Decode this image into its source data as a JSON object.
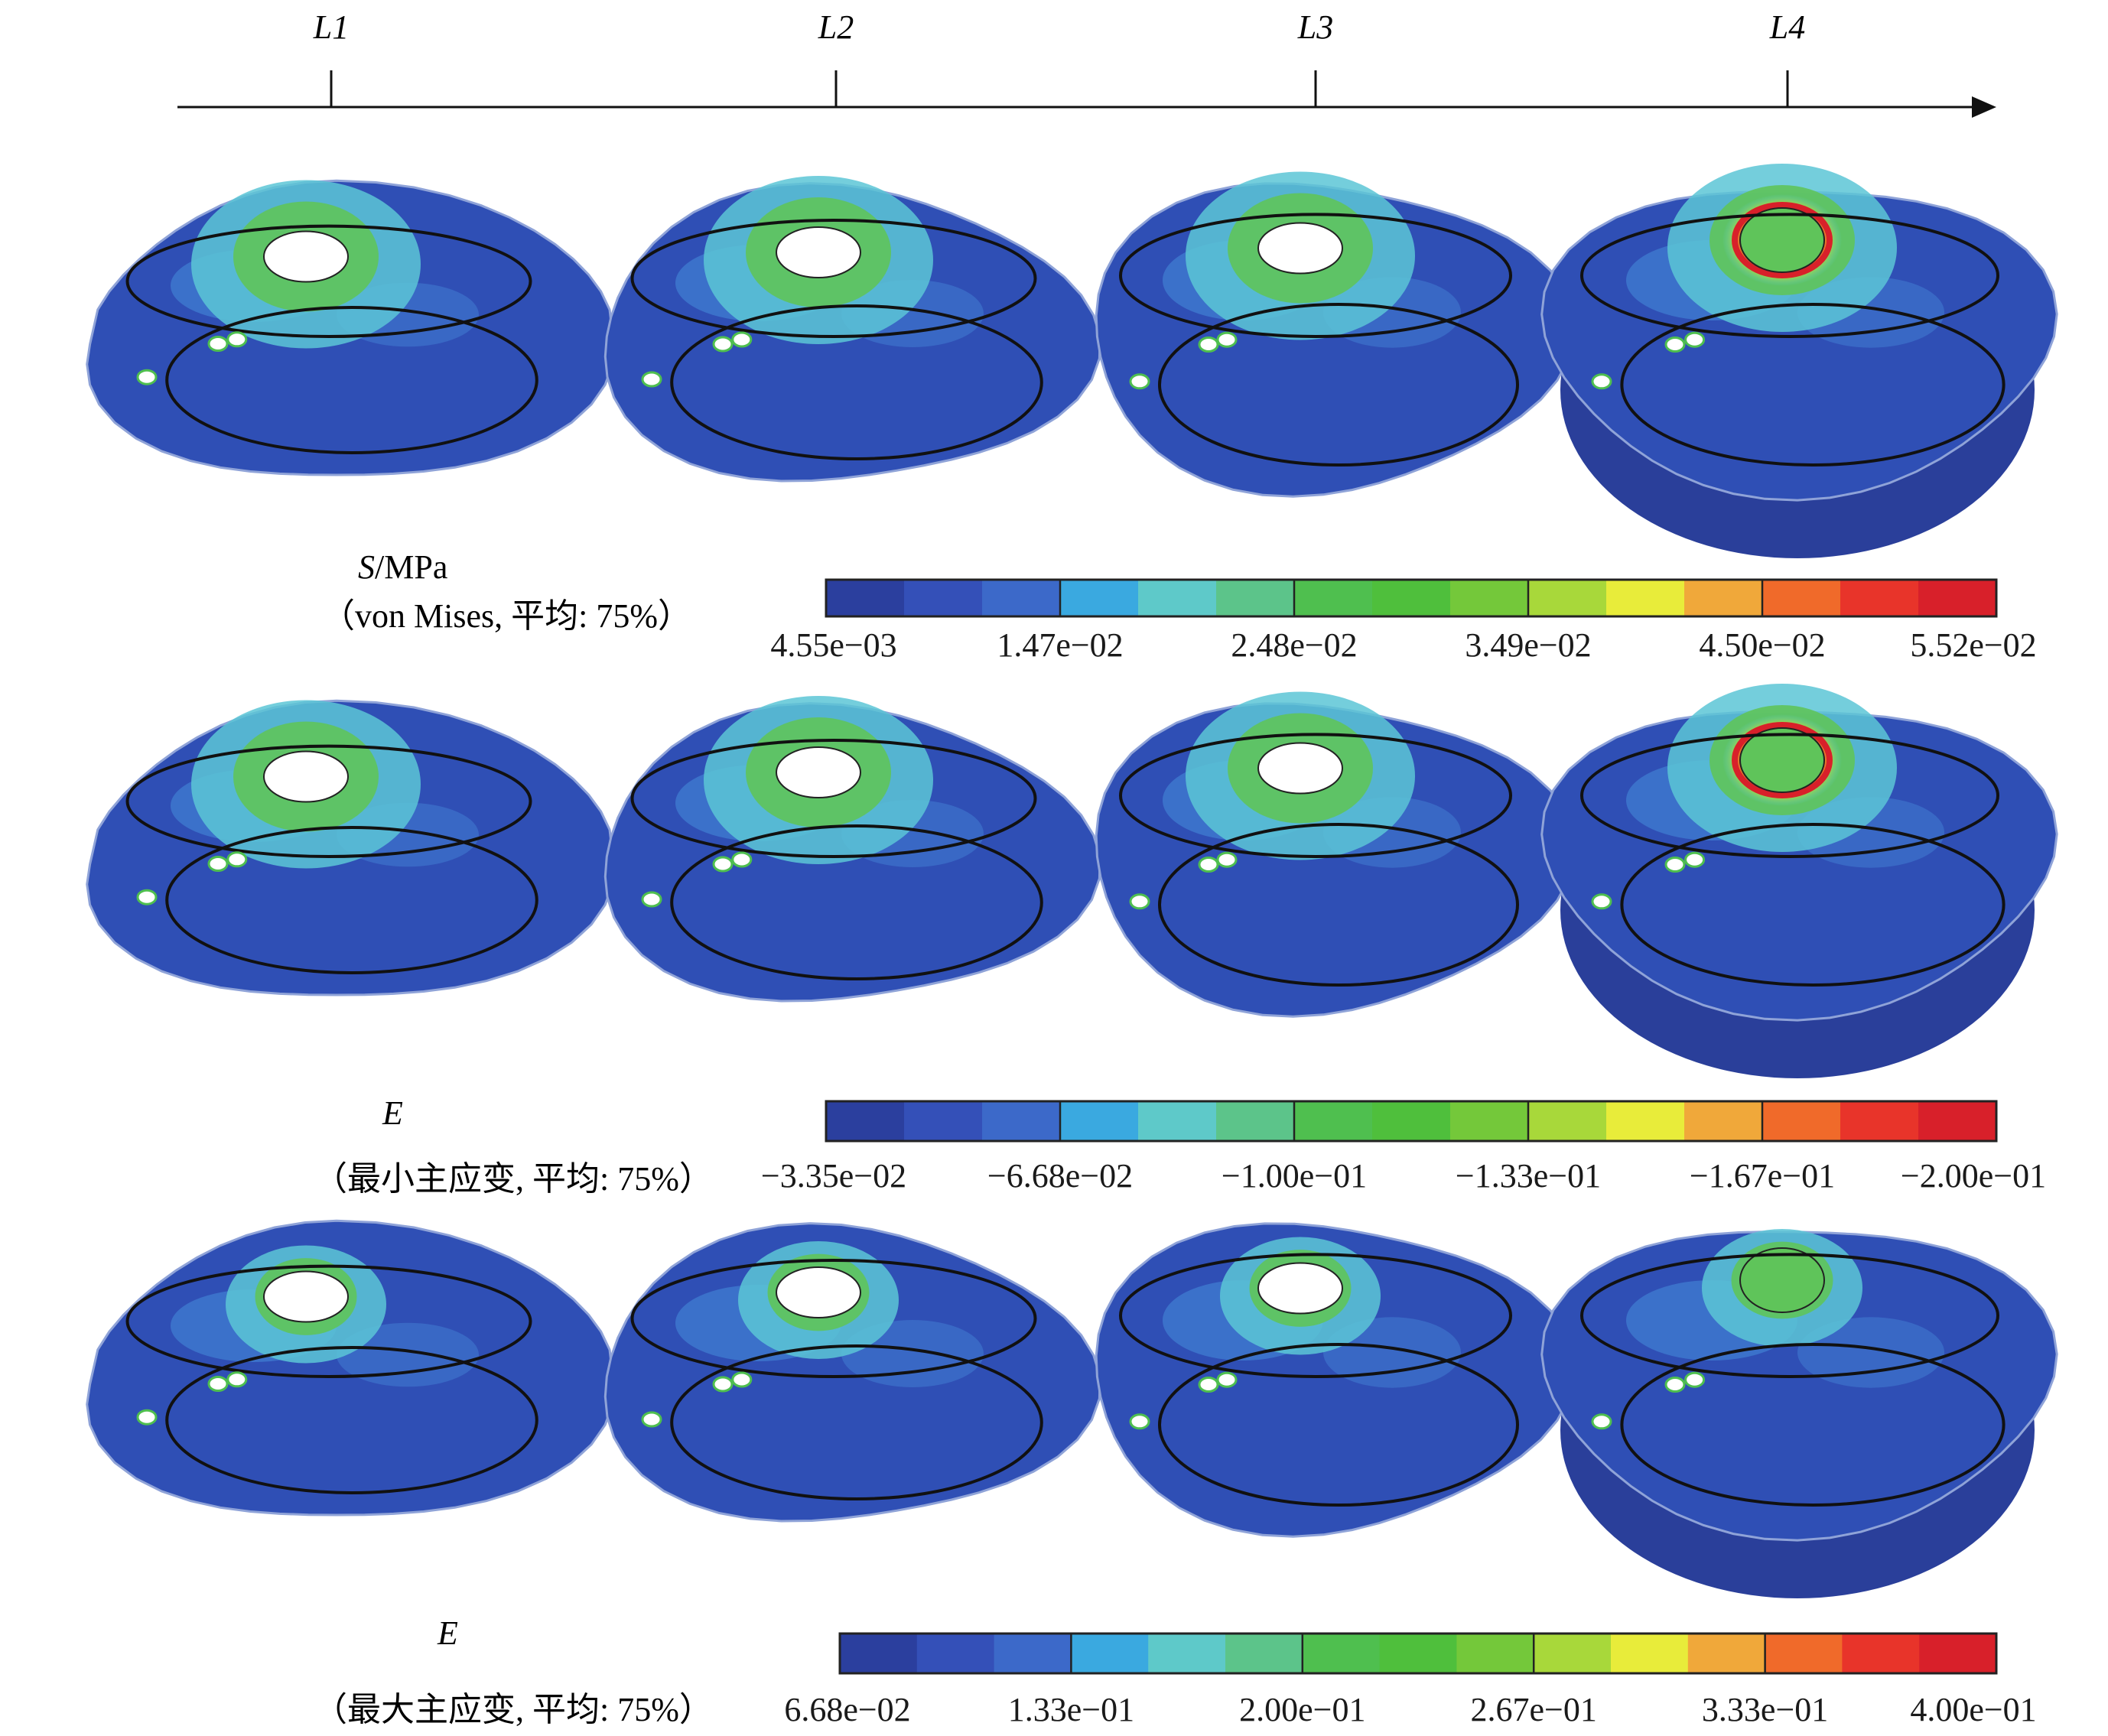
{
  "timeline": {
    "levels": [
      "L1",
      "L2",
      "L3",
      "L4"
    ]
  },
  "rows": [
    {
      "id": "stress",
      "variable_symbol": "S",
      "variable_unit": "/MPa",
      "variable_desc": "（von Mises, 平均: 75%）",
      "ticks": [
        "4.55e−03",
        "1.47e−02",
        "2.48e−02",
        "3.49e−02",
        "4.50e−02",
        "5.52e−02"
      ]
    },
    {
      "id": "min-principal-strain",
      "variable_symbol": "E",
      "variable_desc": "（最小主应变, 平均: 75%）",
      "ticks": [
        "−3.35e−02",
        "−6.68e−02",
        "−1.00e−01",
        "−1.33e−01",
        "−1.67e−01",
        "−2.00e−01"
      ]
    },
    {
      "id": "max-principal-strain",
      "variable_symbol": "E",
      "variable_desc": "（最大主应变, 平均: 75%）",
      "ticks": [
        "6.68e−02",
        "1.33e−01",
        "2.00e−01",
        "2.67e−01",
        "3.33e−01",
        "4.00e−01"
      ]
    }
  ],
  "colormap": [
    "#2b3f9e",
    "#3450b8",
    "#3c69c9",
    "#3aa9e0",
    "#5ec9c9",
    "#5cc48a",
    "#4fbf4f",
    "#4fbf3c",
    "#74c83a",
    "#a8d83a",
    "#e8ec3a",
    "#f0a83a",
    "#f06a2a",
    "#e8342a",
    "#d8202a"
  ],
  "colors": {
    "base_blue": "#2f4fb5",
    "mid_blue": "#3d74cc",
    "cyan": "#5cc6d6",
    "green": "#5fc45a",
    "outline": "#111111"
  }
}
